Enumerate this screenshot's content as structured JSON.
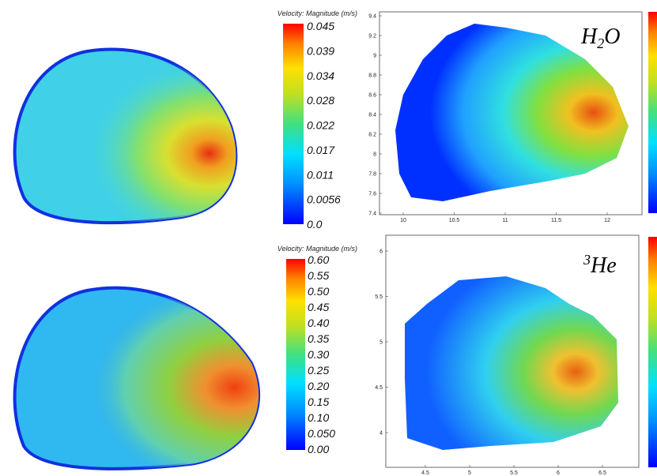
{
  "panels": [
    {
      "colorbar_title": "Velocity: Magnitude (m/s)",
      "colorbar_ticks": [
        "0.045",
        "0.039",
        "0.034",
        "0.028",
        "0.022",
        "0.017",
        "0.011",
        "0.0056",
        "0.0"
      ]
    },
    {
      "label_parts": [
        "H",
        "2",
        "O"
      ],
      "x_ticks": [
        "10",
        "10.5",
        "11",
        "11.5",
        "12"
      ],
      "y_ticks": [
        "9.4",
        "9.2",
        "9",
        "8.8",
        "8.6",
        "8.4",
        "8.2",
        "8",
        "7.8",
        "7.6",
        "7.4"
      ]
    },
    {
      "colorbar_title": "Velocity: Magnitude (m/s)",
      "colorbar_ticks": [
        "0.60",
        "0.55",
        "0.50",
        "0.45",
        "0.40",
        "0.35",
        "0.30",
        "0.25",
        "0.20",
        "0.15",
        "0.10",
        "0.050",
        "0.00"
      ]
    },
    {
      "label_parts": [
        "3",
        "He"
      ],
      "x_ticks": [
        "4.5",
        "5",
        "5.5",
        "6",
        "6.5"
      ],
      "y_ticks": [
        "6",
        "5.5",
        "5",
        "4.5",
        "4"
      ]
    }
  ]
}
